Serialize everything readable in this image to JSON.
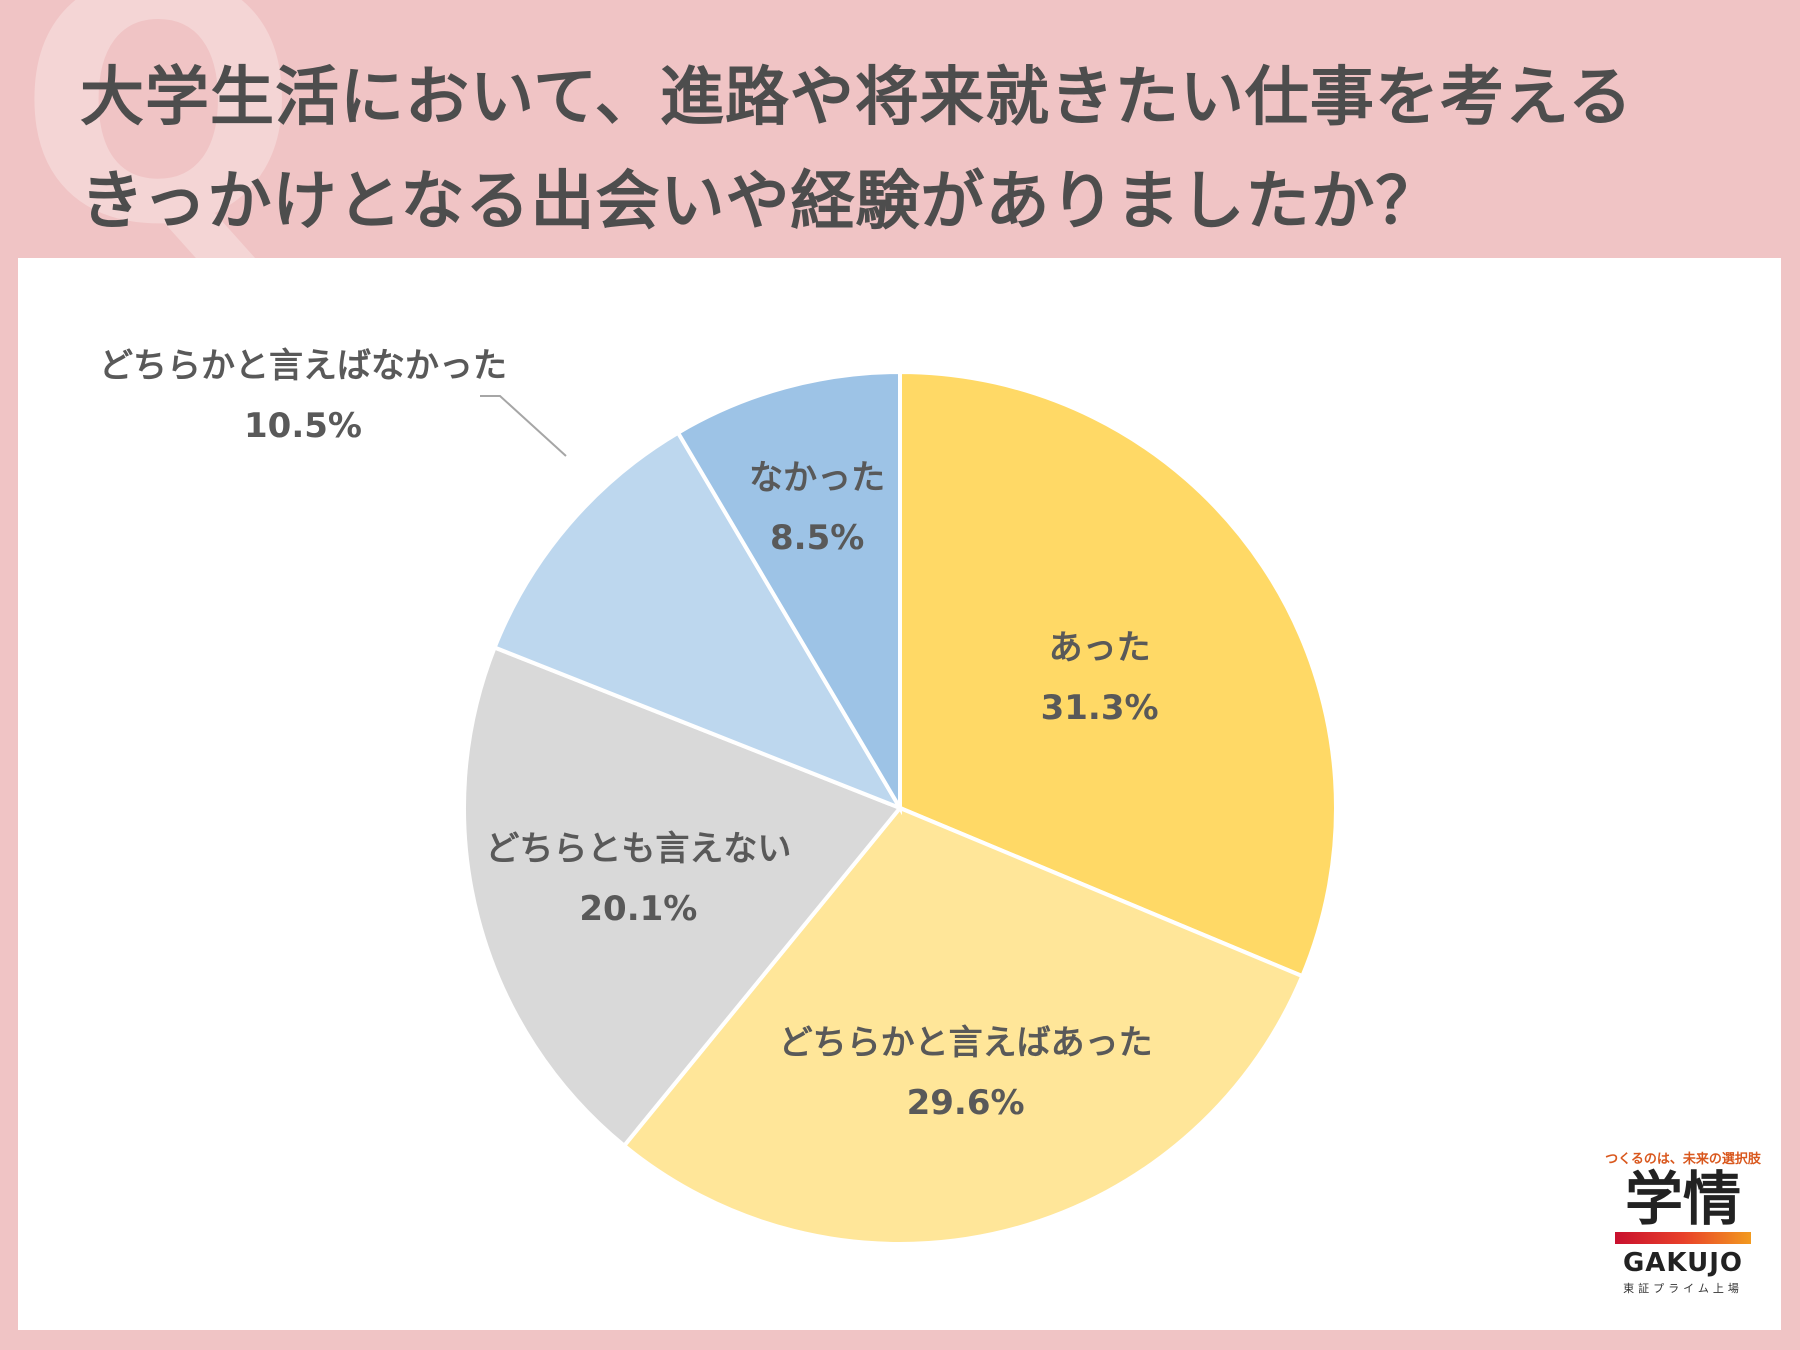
{
  "header": {
    "watermark": "Q",
    "title_line1": "大学生活において、進路や将来就きたい仕事を考える",
    "title_line2": "きっかけとなる出会いや経験がありましたか？"
  },
  "chart_data": {
    "type": "pie",
    "title": "大学生活において、進路や将来就きたい仕事を考えるきっかけとなる出会いや経験がありましたか？",
    "start_angle_deg": 0,
    "direction": "clockwise",
    "slices": [
      {
        "label": "あった",
        "value": 31.3,
        "value_label": "31.3%",
        "color": "#ffd966"
      },
      {
        "label": "どちらかと言えばあった",
        "value": 29.6,
        "value_label": "29.6%",
        "color": "#ffe699"
      },
      {
        "label": "どちらとも言えない",
        "value": 20.1,
        "value_label": "20.1%",
        "color": "#d9d9d9"
      },
      {
        "label": "どちらかと言えばなかった",
        "value": 10.5,
        "value_label": "10.5%",
        "color": "#bdd7ee"
      },
      {
        "label": "なかった",
        "value": 8.5,
        "value_label": "8.5%",
        "color": "#9dc3e6"
      }
    ]
  },
  "logo": {
    "tagline": "つくるのは、未来の選択肢",
    "kanji": "学情",
    "roman": "GAKUJO",
    "sub": "東証プライム上場"
  }
}
